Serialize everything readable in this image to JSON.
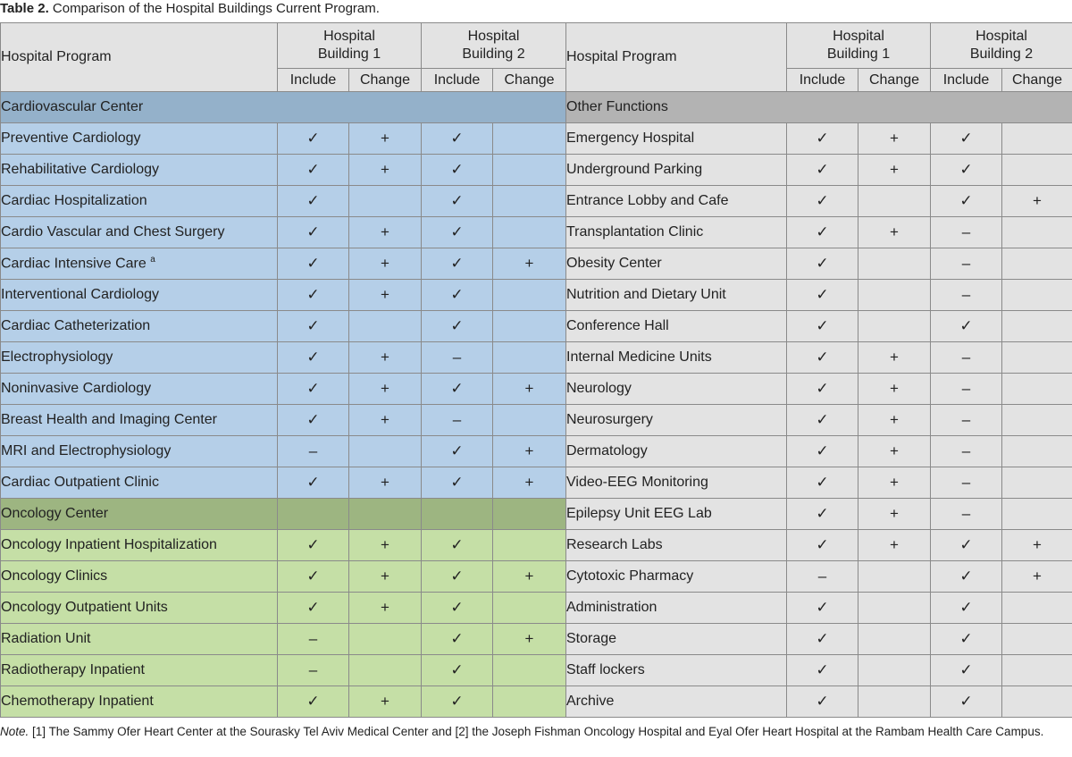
{
  "caption": {
    "label": "Table 2.",
    "text": "Comparison of the Hospital Buildings Current Program."
  },
  "header": {
    "program": "Hospital Program",
    "building1": [
      "Hospital",
      "Building 1"
    ],
    "building2": [
      "Hospital",
      "Building 2"
    ],
    "include": "Include",
    "change": "Change"
  },
  "sections": {
    "cardio": "Cardiovascular Center",
    "onco": "Oncology Center",
    "other": "Other Functions"
  },
  "rows": [
    {
      "left": {
        "name": "Preventive Cardiology",
        "v": [
          "✓",
          "+",
          "✓",
          ""
        ]
      },
      "right": {
        "name": "Emergency Hospital",
        "v": [
          "✓",
          "+",
          "✓",
          ""
        ]
      }
    },
    {
      "left": {
        "name": "Rehabilitative Cardiology",
        "v": [
          "✓",
          "+",
          "✓",
          ""
        ]
      },
      "right": {
        "name": "Underground Parking",
        "v": [
          "✓",
          "+",
          "✓",
          ""
        ]
      }
    },
    {
      "left": {
        "name": "Cardiac Hospitalization",
        "v": [
          "✓",
          "",
          "✓",
          ""
        ]
      },
      "right": {
        "name": "Entrance Lobby and Cafe",
        "v": [
          "✓",
          "",
          "✓",
          "+"
        ]
      }
    },
    {
      "left": {
        "name": "Cardio Vascular and Chest Surgery",
        "v": [
          "✓",
          "+",
          "✓",
          ""
        ]
      },
      "right": {
        "name": "Transplantation Clinic",
        "v": [
          "✓",
          "+",
          "–",
          ""
        ]
      }
    },
    {
      "left": {
        "name": "Cardiac Intensive Care",
        "sup": "a",
        "v": [
          "✓",
          "+",
          "✓",
          "+"
        ]
      },
      "right": {
        "name": "Obesity Center",
        "v": [
          "✓",
          "",
          "–",
          ""
        ]
      }
    },
    {
      "left": {
        "name": "Interventional Cardiology",
        "v": [
          "✓",
          "+",
          "✓",
          ""
        ]
      },
      "right": {
        "name": "Nutrition and Dietary Unit",
        "v": [
          "✓",
          "",
          "–",
          ""
        ]
      }
    },
    {
      "left": {
        "name": "Cardiac Catheterization",
        "v": [
          "✓",
          "",
          "✓",
          ""
        ]
      },
      "right": {
        "name": "Conference Hall",
        "v": [
          "✓",
          "",
          "✓",
          ""
        ]
      }
    },
    {
      "left": {
        "name": "Electrophysiology",
        "v": [
          "✓",
          "+",
          "–",
          ""
        ]
      },
      "right": {
        "name": "Internal Medicine Units",
        "v": [
          "✓",
          "+",
          "–",
          ""
        ]
      }
    },
    {
      "left": {
        "name": "Noninvasive Cardiology",
        "v": [
          "✓",
          "+",
          "✓",
          "+"
        ]
      },
      "right": {
        "name": "Neurology",
        "v": [
          "✓",
          "+",
          "–",
          ""
        ]
      }
    },
    {
      "left": {
        "name": "Breast Health and Imaging Center",
        "v": [
          "✓",
          "+",
          "–",
          ""
        ]
      },
      "right": {
        "name": "Neurosurgery",
        "v": [
          "✓",
          "+",
          "–",
          ""
        ]
      }
    },
    {
      "left": {
        "name": "MRI and Electrophysiology",
        "v": [
          "–",
          "",
          "✓",
          "+"
        ]
      },
      "right": {
        "name": "Dermatology",
        "v": [
          "✓",
          "+",
          "–",
          ""
        ]
      }
    },
    {
      "left": {
        "name": "Cardiac Outpatient Clinic",
        "v": [
          "✓",
          "+",
          "✓",
          "+"
        ]
      },
      "right": {
        "name": "Video-EEG Monitoring",
        "v": [
          "✓",
          "+",
          "–",
          ""
        ]
      }
    },
    {
      "right": {
        "name": "Epilepsy Unit EEG Lab",
        "v": [
          "✓",
          "+",
          "–",
          ""
        ]
      }
    },
    {
      "left": {
        "name": "Oncology Inpatient Hospitalization",
        "v": [
          "✓",
          "+",
          "✓",
          ""
        ]
      },
      "right": {
        "name": "Research Labs",
        "v": [
          "✓",
          "+",
          "✓",
          "+"
        ]
      }
    },
    {
      "left": {
        "name": "Oncology Clinics",
        "v": [
          "✓",
          "+",
          "✓",
          "+"
        ]
      },
      "right": {
        "name": "Cytotoxic Pharmacy",
        "v": [
          "–",
          "",
          "✓",
          "+"
        ]
      }
    },
    {
      "left": {
        "name": "Oncology Outpatient Units",
        "v": [
          "✓",
          "+",
          "✓",
          ""
        ]
      },
      "right": {
        "name": "Administration",
        "v": [
          "✓",
          "",
          "✓",
          ""
        ]
      }
    },
    {
      "left": {
        "name": "Radiation Unit",
        "v": [
          "–",
          "",
          "✓",
          "+"
        ]
      },
      "right": {
        "name": "Storage",
        "v": [
          "✓",
          "",
          "✓",
          ""
        ]
      }
    },
    {
      "left": {
        "name": "Radiotherapy Inpatient",
        "v": [
          "–",
          "",
          "✓",
          ""
        ]
      },
      "right": {
        "name": "Staff lockers",
        "v": [
          "✓",
          "",
          "✓",
          ""
        ]
      }
    },
    {
      "left": {
        "name": "Chemotherapy Inpatient",
        "v": [
          "✓",
          "+",
          "✓",
          ""
        ]
      },
      "right": {
        "name": "Archive",
        "v": [
          "✓",
          "",
          "✓",
          ""
        ]
      }
    }
  ],
  "note": {
    "label": "Note.",
    "text": "[1] The Sammy Ofer Heart Center at the Sourasky Tel Aviv Medical Center and [2] the Joseph Fishman Oncology Hospital and Eyal Ofer Heart Hospital at the Rambam Health Care Campus."
  }
}
